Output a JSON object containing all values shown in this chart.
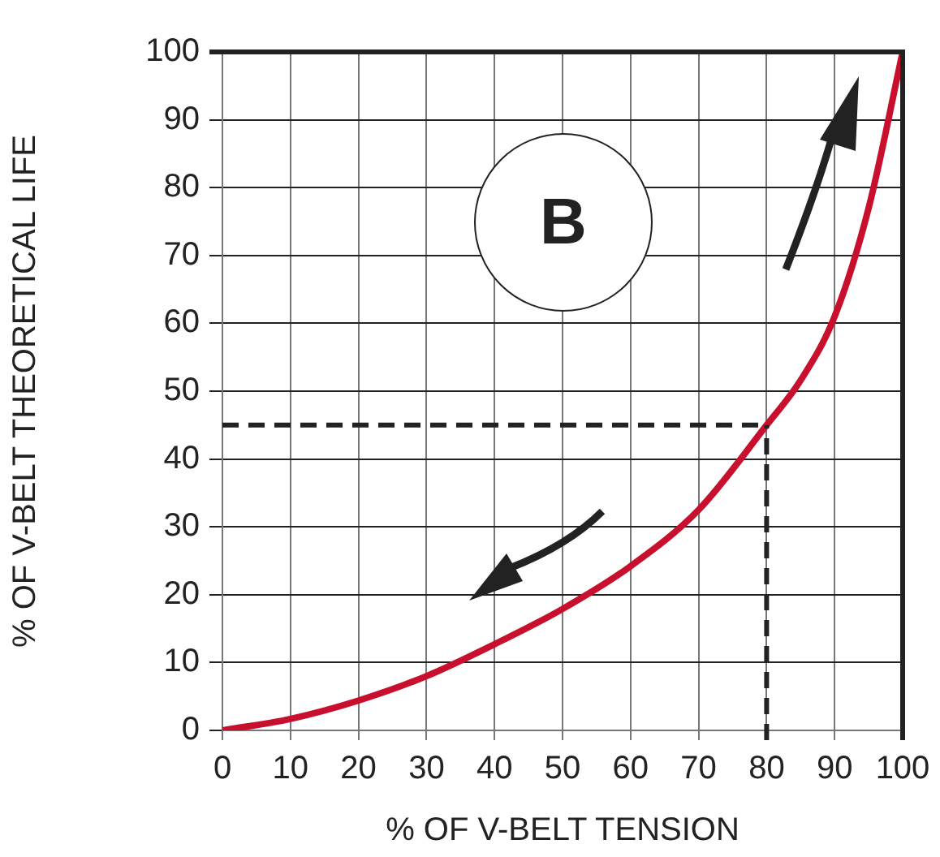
{
  "chart_data": {
    "type": "line",
    "xlabel": "% OF V-BELT TENSION",
    "ylabel": "% OF V-BELT THEORETICAL LIFE",
    "x": [
      0,
      10,
      20,
      30,
      40,
      50,
      60,
      70,
      80,
      85,
      90,
      95,
      100
    ],
    "series": [
      {
        "color": "#c8102e",
        "values": [
          0,
          1.7,
          4.4,
          8,
          12.7,
          17.9,
          24.2,
          32.5,
          45,
          51.6,
          61,
          77,
          100
        ]
      }
    ],
    "xlim": [
      0,
      100
    ],
    "xticks": [
      0,
      10,
      20,
      30,
      40,
      50,
      60,
      70,
      80,
      90,
      100
    ],
    "ylim": [
      0,
      100
    ],
    "yticks": [
      0,
      10,
      20,
      30,
      40,
      50,
      60,
      70,
      80,
      90,
      100
    ],
    "grid": true,
    "legend": false,
    "marker": "none",
    "line_style": "solid",
    "ref_lines": [
      {
        "axis": "y",
        "value": 45,
        "line_style": "dashed",
        "color": "#222222"
      },
      {
        "axis": "x",
        "value": 80,
        "line_style": "dashed",
        "color": "#222222"
      }
    ],
    "annotations": [
      "B"
    ]
  }
}
